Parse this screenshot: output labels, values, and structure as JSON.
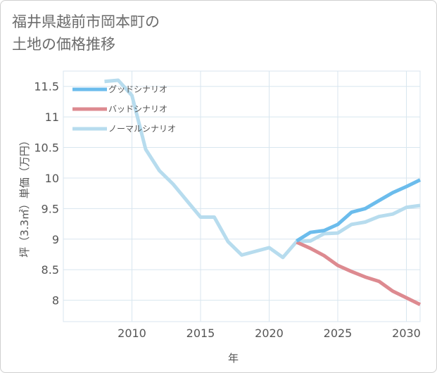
{
  "title_lines": [
    "福井県越前市岡本町の",
    "土地の価格推移"
  ],
  "colors": {
    "good": "#6bbcec",
    "bad": "#dd8a90",
    "normal": "#b7dcee",
    "grid": "#d8e6ef"
  },
  "chart_data": {
    "type": "line",
    "xlabel": "年",
    "ylabel": "坪（3.3㎡）単価（万円）",
    "xlim": [
      2005,
      2031
    ],
    "ylim": [
      7.65,
      11.75
    ],
    "x_ticks": [
      2010,
      2015,
      2020,
      2025,
      2030
    ],
    "y_ticks": [
      8,
      8.5,
      9,
      9.5,
      10,
      10.5,
      11,
      11.5
    ],
    "y_tick_labels": [
      "8",
      "8.5",
      "9",
      "9.5",
      "10",
      "10.5",
      "11",
      "11.5"
    ],
    "grid": true,
    "legend_position": "top-left",
    "series": [
      {
        "name": "グッドシナリオ",
        "color_key": "good",
        "x": [
          2022,
          2023,
          2024,
          2025,
          2026,
          2027,
          2028,
          2029,
          2030,
          2031
        ],
        "y": [
          8.97,
          9.11,
          9.14,
          9.24,
          9.44,
          9.5,
          9.63,
          9.76,
          9.86,
          9.97
        ]
      },
      {
        "name": "バッドシナリオ",
        "color_key": "bad",
        "x": [
          2022,
          2023,
          2024,
          2025,
          2026,
          2027,
          2028,
          2029,
          2030,
          2031
        ],
        "y": [
          8.95,
          8.85,
          8.73,
          8.57,
          8.47,
          8.38,
          8.31,
          8.15,
          8.04,
          7.93
        ]
      },
      {
        "name": "ノーマルシナリオ",
        "color_key": "normal",
        "x": [
          2008,
          2009,
          2010,
          2011,
          2012,
          2013,
          2014,
          2015,
          2016,
          2017,
          2018,
          2019,
          2020,
          2021,
          2022,
          2023,
          2024,
          2025,
          2026,
          2027,
          2028,
          2029,
          2030,
          2031
        ],
        "y": [
          11.58,
          11.6,
          11.35,
          10.47,
          10.12,
          9.9,
          9.63,
          9.36,
          9.36,
          8.96,
          8.74,
          8.8,
          8.86,
          8.7,
          8.96,
          8.97,
          9.09,
          9.1,
          9.24,
          9.28,
          9.37,
          9.41,
          9.52,
          9.55
        ]
      }
    ]
  }
}
